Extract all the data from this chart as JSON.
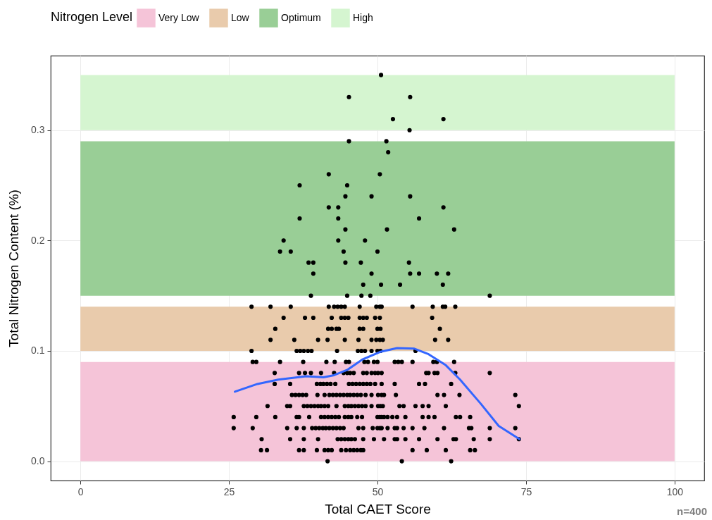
{
  "chart_data": {
    "type": "scatter",
    "xlabel": "Total CAET Score",
    "ylabel": "Total Nitrogen Content (%)",
    "legend_title": "Nitrogen Level",
    "legend": "top",
    "grid": true,
    "xlim": [
      -5,
      105
    ],
    "ylim": [
      -0.0175,
      0.3675
    ],
    "xticks": [
      0,
      25,
      50,
      75,
      100
    ],
    "yticks": [
      {
        "value": 0,
        "label": "0.0"
      },
      {
        "value": 0.1,
        "label": "0.1"
      },
      {
        "value": 0.2,
        "label": "0.2"
      },
      {
        "value": 0.3,
        "label": "0.3"
      }
    ],
    "bands": [
      {
        "axis": "y",
        "from": 0,
        "to": 0.09,
        "label": "Very Low",
        "color": "#f5c4d8"
      },
      {
        "axis": "y",
        "from": 0.1,
        "to": 0.14,
        "label": "Low",
        "color": "#e9cbac"
      },
      {
        "axis": "y",
        "from": 0.15,
        "to": 0.29,
        "label": "Optimum",
        "color": "#99ce96"
      },
      {
        "axis": "y",
        "from": 0.3,
        "to": 0.35,
        "label": "High",
        "color": "#d5f5d0"
      }
    ],
    "annotations": [
      "n=400"
    ],
    "series": [
      {
        "color": "#000000",
        "marker": "circle",
        "x": [
          50.6,
          45.2,
          55.5,
          52.6,
          61.1,
          55.4,
          45.2,
          51.5,
          51.8,
          41.8,
          50.4,
          36.9,
          44.9,
          44.6,
          49,
          55.5,
          41.8,
          43.4,
          61.1,
          36.9,
          43.4,
          57,
          44.6,
          51.6,
          62.9,
          34.2,
          43.4,
          47.9,
          33.6,
          35.4,
          44.3,
          50,
          38.4,
          39.2,
          44.6,
          47.2,
          55.3,
          39.2,
          49,
          55.5,
          57,
          60,
          61.9,
          47.6,
          50.6,
          53.8,
          61,
          38.8,
          44.9,
          47.3,
          48.8,
          68.9,
          28.8,
          32,
          35.4,
          41.8,
          42.7,
          43.3,
          43.9,
          44.5,
          47,
          49.8,
          50.4,
          50.7,
          55.9,
          59.3,
          61,
          61.4,
          63.1,
          34.2,
          37.8,
          39.2,
          42.3,
          43.9,
          44.5,
          45.1,
          47,
          47.6,
          48.2,
          49.6,
          50.4,
          59.2,
          32.8,
          41.7,
          42.3,
          43.1,
          43.5,
          47,
          47.6,
          50,
          50.5,
          60.5,
          32,
          36,
          40,
          41.6,
          44.5,
          46.8,
          49,
          49.8,
          50.4,
          50.9,
          59.7,
          61.9,
          28.8,
          36.4,
          37,
          37.6,
          38.3,
          38.9,
          43.2,
          46.7,
          47.3,
          47.9,
          49,
          50,
          50.5,
          56.4,
          29,
          29.6,
          33.6,
          37.5,
          41.4,
          42.8,
          44.7,
          45.2,
          47.8,
          48.4,
          49.4,
          50,
          52.9,
          53.5,
          54.1,
          55.9,
          59.4,
          60,
          62.9,
          32.7,
          36.8,
          37.8,
          38.8,
          40.5,
          42.7,
          44.3,
          44.9,
          45.4,
          46,
          47.6,
          48.2,
          49,
          49.6,
          50.1,
          50.7,
          58.2,
          58.6,
          59.6,
          60.1,
          63.1,
          68.9,
          32.7,
          35.3,
          39.8,
          40.4,
          40.9,
          41.5,
          42.1,
          42.9,
          45.2,
          45.8,
          46.4,
          47,
          47.6,
          48.2,
          48.8,
          49.6,
          50.7,
          52.9,
          57,
          58,
          62.4,
          35.6,
          36.2,
          36.8,
          37.4,
          38,
          39.9,
          41.1,
          41.9,
          42.5,
          43.1,
          43.7,
          44.3,
          44.9,
          45.4,
          46,
          46.6,
          47.2,
          48,
          49,
          50.1,
          50.7,
          51.1,
          53.1,
          60.1,
          61.2,
          63.8,
          73.2,
          31.5,
          34.8,
          35.3,
          37.6,
          38.2,
          38.8,
          39.4,
          40,
          40.5,
          41.1,
          41.7,
          43.1,
          44.5,
          45.1,
          45.6,
          46.2,
          46.8,
          47.4,
          48,
          49,
          50.1,
          50.5,
          50.9,
          53.7,
          54.4,
          56.4,
          57.6,
          58.6,
          61.5,
          73.8,
          25.8,
          29.6,
          32.8,
          36.4,
          36.8,
          38.5,
          40.5,
          41.1,
          41.7,
          42.3,
          42.9,
          43.5,
          44.5,
          45.1,
          45.6,
          46.6,
          47.4,
          50,
          50.4,
          50.7,
          51.1,
          51.7,
          52.5,
          53.3,
          54.7,
          57.6,
          58.6,
          59.6,
          63.2,
          63.9,
          65.6,
          25.8,
          29,
          34.8,
          36.4,
          37.6,
          39,
          39.6,
          40.2,
          40.8,
          41.3,
          41.9,
          42.5,
          43.1,
          43.7,
          44.3,
          46.8,
          47.6,
          49.2,
          50,
          50.4,
          50.7,
          51.7,
          52.9,
          53.3,
          54.4,
          55.9,
          57.9,
          61.2,
          65.4,
          65.8,
          68.9,
          73.2,
          30.5,
          35.3,
          37.6,
          40,
          43.3,
          43.9,
          44.5,
          45.1,
          45.6,
          46.2,
          47.6,
          49.4,
          51.1,
          52.9,
          53.3,
          54.7,
          57,
          60.1,
          62.8,
          63.2,
          66.2,
          68.9,
          73.8,
          30.4,
          31.4,
          36.8,
          37.6,
          39.8,
          41.1,
          41.7,
          42.3,
          43.9,
          44.7,
          45.4,
          46,
          46.6,
          47.2,
          47.6,
          55.9,
          58.3,
          61.5,
          65.6,
          66.4,
          41.6,
          54.1,
          62.4
        ],
        "values": [
          0.35,
          0.33,
          0.33,
          0.31,
          0.31,
          0.3,
          0.29,
          0.29,
          0.28,
          0.26,
          0.26,
          0.25,
          0.25,
          0.24,
          0.24,
          0.24,
          0.23,
          0.23,
          0.23,
          0.22,
          0.22,
          0.22,
          0.21,
          0.21,
          0.21,
          0.2,
          0.2,
          0.2,
          0.19,
          0.19,
          0.19,
          0.19,
          0.18,
          0.18,
          0.18,
          0.18,
          0.18,
          0.17,
          0.17,
          0.17,
          0.17,
          0.17,
          0.17,
          0.16,
          0.16,
          0.16,
          0.16,
          0.15,
          0.15,
          0.15,
          0.15,
          0.15,
          0.14,
          0.14,
          0.14,
          0.14,
          0.14,
          0.14,
          0.14,
          0.14,
          0.14,
          0.14,
          0.14,
          0.14,
          0.14,
          0.14,
          0.14,
          0.14,
          0.14,
          0.13,
          0.13,
          0.13,
          0.13,
          0.13,
          0.13,
          0.13,
          0.13,
          0.13,
          0.13,
          0.13,
          0.13,
          0.13,
          0.12,
          0.12,
          0.12,
          0.12,
          0.12,
          0.12,
          0.12,
          0.12,
          0.12,
          0.12,
          0.11,
          0.11,
          0.11,
          0.11,
          0.11,
          0.11,
          0.11,
          0.11,
          0.11,
          0.11,
          0.11,
          0.11,
          0.1,
          0.1,
          0.1,
          0.1,
          0.1,
          0.1,
          0.1,
          0.1,
          0.1,
          0.1,
          0.1,
          0.1,
          0.1,
          0.1,
          0.09,
          0.09,
          0.09,
          0.09,
          0.09,
          0.09,
          0.09,
          0.09,
          0.09,
          0.09,
          0.09,
          0.09,
          0.09,
          0.09,
          0.09,
          0.09,
          0.09,
          0.09,
          0.09,
          0.08,
          0.08,
          0.08,
          0.08,
          0.08,
          0.08,
          0.08,
          0.08,
          0.08,
          0.08,
          0.08,
          0.08,
          0.08,
          0.08,
          0.08,
          0.08,
          0.08,
          0.08,
          0.08,
          0.08,
          0.08,
          0.08,
          0.07,
          0.07,
          0.07,
          0.07,
          0.07,
          0.07,
          0.07,
          0.07,
          0.07,
          0.07,
          0.07,
          0.07,
          0.07,
          0.07,
          0.07,
          0.07,
          0.07,
          0.07,
          0.07,
          0.07,
          0.07,
          0.06,
          0.06,
          0.06,
          0.06,
          0.06,
          0.06,
          0.06,
          0.06,
          0.06,
          0.06,
          0.06,
          0.06,
          0.06,
          0.06,
          0.06,
          0.06,
          0.06,
          0.06,
          0.06,
          0.06,
          0.06,
          0.06,
          0.06,
          0.06,
          0.06,
          0.06,
          0.06,
          0.05,
          0.05,
          0.05,
          0.05,
          0.05,
          0.05,
          0.05,
          0.05,
          0.05,
          0.05,
          0.05,
          0.05,
          0.05,
          0.05,
          0.05,
          0.05,
          0.05,
          0.05,
          0.05,
          0.05,
          0.05,
          0.05,
          0.05,
          0.05,
          0.05,
          0.05,
          0.05,
          0.05,
          0.05,
          0.05,
          0.04,
          0.04,
          0.04,
          0.04,
          0.04,
          0.04,
          0.04,
          0.04,
          0.04,
          0.04,
          0.04,
          0.04,
          0.04,
          0.04,
          0.04,
          0.04,
          0.04,
          0.04,
          0.04,
          0.04,
          0.04,
          0.04,
          0.04,
          0.04,
          0.04,
          0.04,
          0.04,
          0.04,
          0.04,
          0.04,
          0.04,
          0.03,
          0.03,
          0.03,
          0.03,
          0.03,
          0.03,
          0.03,
          0.03,
          0.03,
          0.03,
          0.03,
          0.03,
          0.03,
          0.03,
          0.03,
          0.03,
          0.03,
          0.03,
          0.03,
          0.03,
          0.03,
          0.03,
          0.03,
          0.03,
          0.03,
          0.03,
          0.03,
          0.03,
          0.03,
          0.03,
          0.03,
          0.03,
          0.02,
          0.02,
          0.02,
          0.02,
          0.02,
          0.02,
          0.02,
          0.02,
          0.02,
          0.02,
          0.02,
          0.02,
          0.02,
          0.02,
          0.02,
          0.02,
          0.02,
          0.02,
          0.02,
          0.02,
          0.02,
          0.02,
          0.02,
          0.01,
          0.01,
          0.01,
          0.01,
          0.01,
          0.01,
          0.01,
          0.01,
          0.01,
          0.01,
          0.01,
          0.01,
          0.01,
          0.01,
          0.01,
          0.01,
          0.01,
          0.01,
          0.01,
          0.01,
          0,
          0,
          0
        ]
      },
      {
        "type": "line",
        "color": "#3366ff",
        "x": [
          26,
          29.8,
          33.3,
          38,
          40.9,
          42.7,
          45,
          47.4,
          50.4,
          53.3,
          56.2,
          58.6,
          61.5,
          63.9,
          67.4,
          70.4,
          73.9
        ],
        "values": [
          0.063,
          0.07,
          0.074,
          0.077,
          0.076,
          0.078,
          0.083,
          0.092,
          0.099,
          0.1025,
          0.102,
          0.097,
          0.087,
          0.074,
          0.052,
          0.032,
          0.02
        ]
      }
    ]
  }
}
